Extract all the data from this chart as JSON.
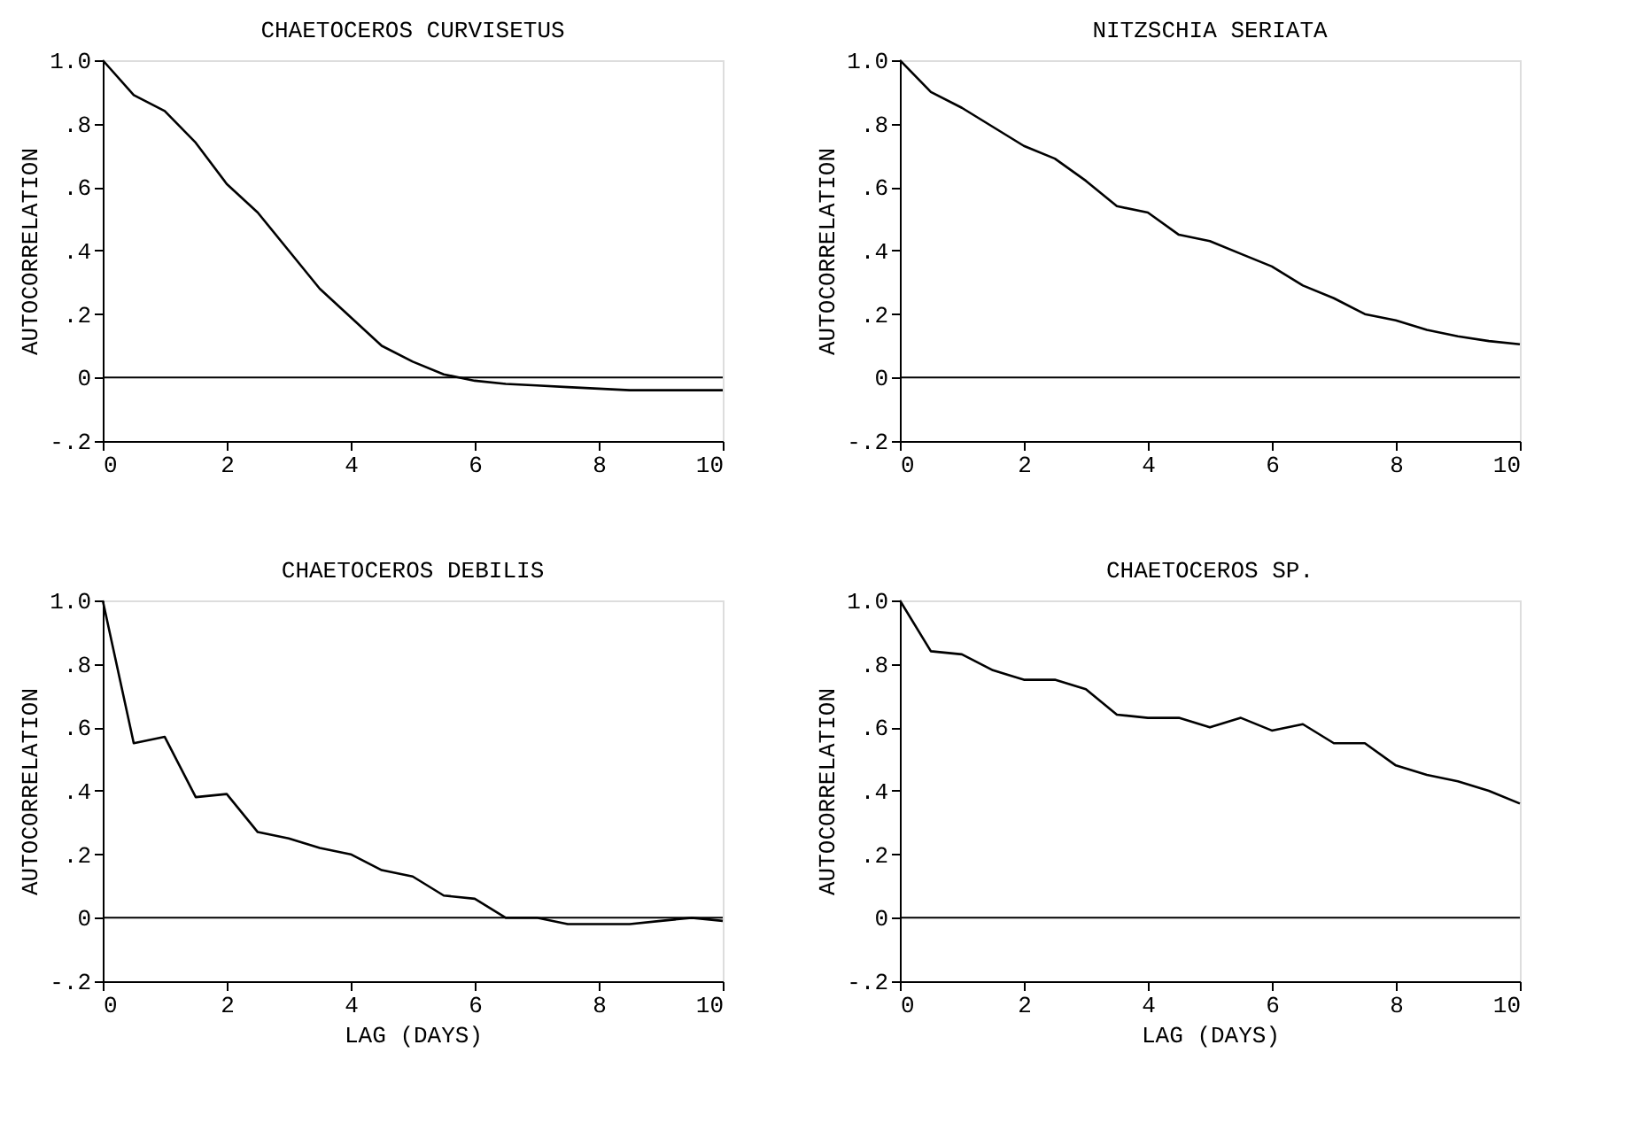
{
  "chart_data": [
    {
      "type": "line",
      "title": "CHAETOCEROS CURVISETUS",
      "ylabel": "AUTOCORRELATION",
      "x": [
        0,
        0.5,
        1,
        1.5,
        2,
        2.5,
        3,
        3.5,
        4,
        4.5,
        5,
        5.5,
        6,
        6.5,
        7,
        7.5,
        8,
        8.5,
        9,
        9.5,
        10
      ],
      "series": [
        {
          "color": "#000000",
          "values": [
            1.0,
            0.89,
            0.84,
            0.74,
            0.61,
            0.52,
            0.4,
            0.28,
            0.19,
            0.1,
            0.05,
            0.01,
            -0.01,
            -0.02,
            -0.025,
            -0.03,
            -0.035,
            -0.04,
            -0.04,
            -0.04,
            -0.04
          ]
        }
      ],
      "xlim": [
        0,
        10
      ],
      "xticks": [
        0,
        2,
        4,
        6,
        8,
        10
      ],
      "ylim": [
        -0.2,
        1.0
      ],
      "yticks": [
        {
          "value": -0.2,
          "label": "-.2"
        },
        {
          "value": 0,
          "label": "0"
        },
        {
          "value": 0.2,
          "label": ".2"
        },
        {
          "value": 0.4,
          "label": ".4"
        },
        {
          "value": 0.6,
          "label": ".6"
        },
        {
          "value": 0.8,
          "label": ".8"
        },
        {
          "value": 1.0,
          "label": "1.0"
        }
      ],
      "ref_lines": [
        {
          "axis": "y",
          "value": 0,
          "color": "#000000"
        }
      ],
      "grid": false,
      "marker": "none",
      "line_style": "solid"
    },
    {
      "type": "line",
      "title": "NITZSCHIA SERIATA",
      "ylabel": "AUTOCORRELATION",
      "x": [
        0,
        0.5,
        1,
        1.5,
        2,
        2.5,
        3,
        3.5,
        4,
        4.5,
        5,
        5.5,
        6,
        6.5,
        7,
        7.5,
        8,
        8.5,
        9,
        9.5,
        10
      ],
      "series": [
        {
          "color": "#000000",
          "values": [
            1.0,
            0.9,
            0.85,
            0.79,
            0.73,
            0.69,
            0.62,
            0.54,
            0.52,
            0.45,
            0.43,
            0.39,
            0.35,
            0.29,
            0.25,
            0.2,
            0.18,
            0.15,
            0.13,
            0.115,
            0.105
          ]
        }
      ],
      "xlim": [
        0,
        10
      ],
      "xticks": [
        0,
        2,
        4,
        6,
        8,
        10
      ],
      "ylim": [
        -0.2,
        1.0
      ],
      "yticks": [
        {
          "value": -0.2,
          "label": "-.2"
        },
        {
          "value": 0,
          "label": "0"
        },
        {
          "value": 0.2,
          "label": ".2"
        },
        {
          "value": 0.4,
          "label": ".4"
        },
        {
          "value": 0.6,
          "label": ".6"
        },
        {
          "value": 0.8,
          "label": ".8"
        },
        {
          "value": 1.0,
          "label": "1.0"
        }
      ],
      "ref_lines": [
        {
          "axis": "y",
          "value": 0,
          "color": "#000000"
        }
      ],
      "grid": false,
      "marker": "none",
      "line_style": "solid"
    },
    {
      "type": "line",
      "title": "CHAETOCEROS DEBILIS",
      "xlabel": "LAG (DAYS)",
      "ylabel": "AUTOCORRELATION",
      "x": [
        0,
        0.5,
        1,
        1.5,
        2,
        2.5,
        3,
        3.5,
        4,
        4.5,
        5,
        5.5,
        6,
        6.5,
        7,
        7.5,
        8,
        8.5,
        9,
        9.5,
        10
      ],
      "series": [
        {
          "color": "#000000",
          "values": [
            1.0,
            0.55,
            0.57,
            0.38,
            0.39,
            0.27,
            0.25,
            0.22,
            0.2,
            0.15,
            0.13,
            0.07,
            0.06,
            0.0,
            0.0,
            -0.02,
            -0.02,
            -0.02,
            -0.01,
            0.0,
            -0.01
          ]
        }
      ],
      "xlim": [
        0,
        10
      ],
      "xticks": [
        0,
        2,
        4,
        6,
        8,
        10
      ],
      "ylim": [
        -0.2,
        1.0
      ],
      "yticks": [
        {
          "value": -0.2,
          "label": "-.2"
        },
        {
          "value": 0,
          "label": "0"
        },
        {
          "value": 0.2,
          "label": ".2"
        },
        {
          "value": 0.4,
          "label": ".4"
        },
        {
          "value": 0.6,
          "label": ".6"
        },
        {
          "value": 0.8,
          "label": ".8"
        },
        {
          "value": 1.0,
          "label": "1.0"
        }
      ],
      "ref_lines": [
        {
          "axis": "y",
          "value": 0,
          "color": "#000000"
        }
      ],
      "grid": false,
      "marker": "none",
      "line_style": "solid"
    },
    {
      "type": "line",
      "title": "CHAETOCEROS SP.",
      "xlabel": "LAG (DAYS)",
      "ylabel": "AUTOCORRELATION",
      "x": [
        0,
        0.5,
        1,
        1.5,
        2,
        2.5,
        3,
        3.5,
        4,
        4.5,
        5,
        5.5,
        6,
        6.5,
        7,
        7.5,
        8,
        8.5,
        9,
        9.5,
        10
      ],
      "series": [
        {
          "color": "#000000",
          "values": [
            1.0,
            0.84,
            0.83,
            0.78,
            0.75,
            0.75,
            0.72,
            0.64,
            0.63,
            0.63,
            0.6,
            0.63,
            0.59,
            0.61,
            0.55,
            0.55,
            0.48,
            0.45,
            0.43,
            0.4,
            0.36
          ]
        }
      ],
      "xlim": [
        0,
        10
      ],
      "xticks": [
        0,
        2,
        4,
        6,
        8,
        10
      ],
      "ylim": [
        -0.2,
        1.0
      ],
      "yticks": [
        {
          "value": -0.2,
          "label": "-.2"
        },
        {
          "value": 0,
          "label": "0"
        },
        {
          "value": 0.2,
          "label": ".2"
        },
        {
          "value": 0.4,
          "label": ".4"
        },
        {
          "value": 0.6,
          "label": ".6"
        },
        {
          "value": 0.8,
          "label": ".8"
        },
        {
          "value": 1.0,
          "label": "1.0"
        }
      ],
      "ref_lines": [
        {
          "axis": "y",
          "value": 0,
          "color": "#000000"
        }
      ],
      "grid": false,
      "marker": "none",
      "line_style": "solid"
    }
  ]
}
